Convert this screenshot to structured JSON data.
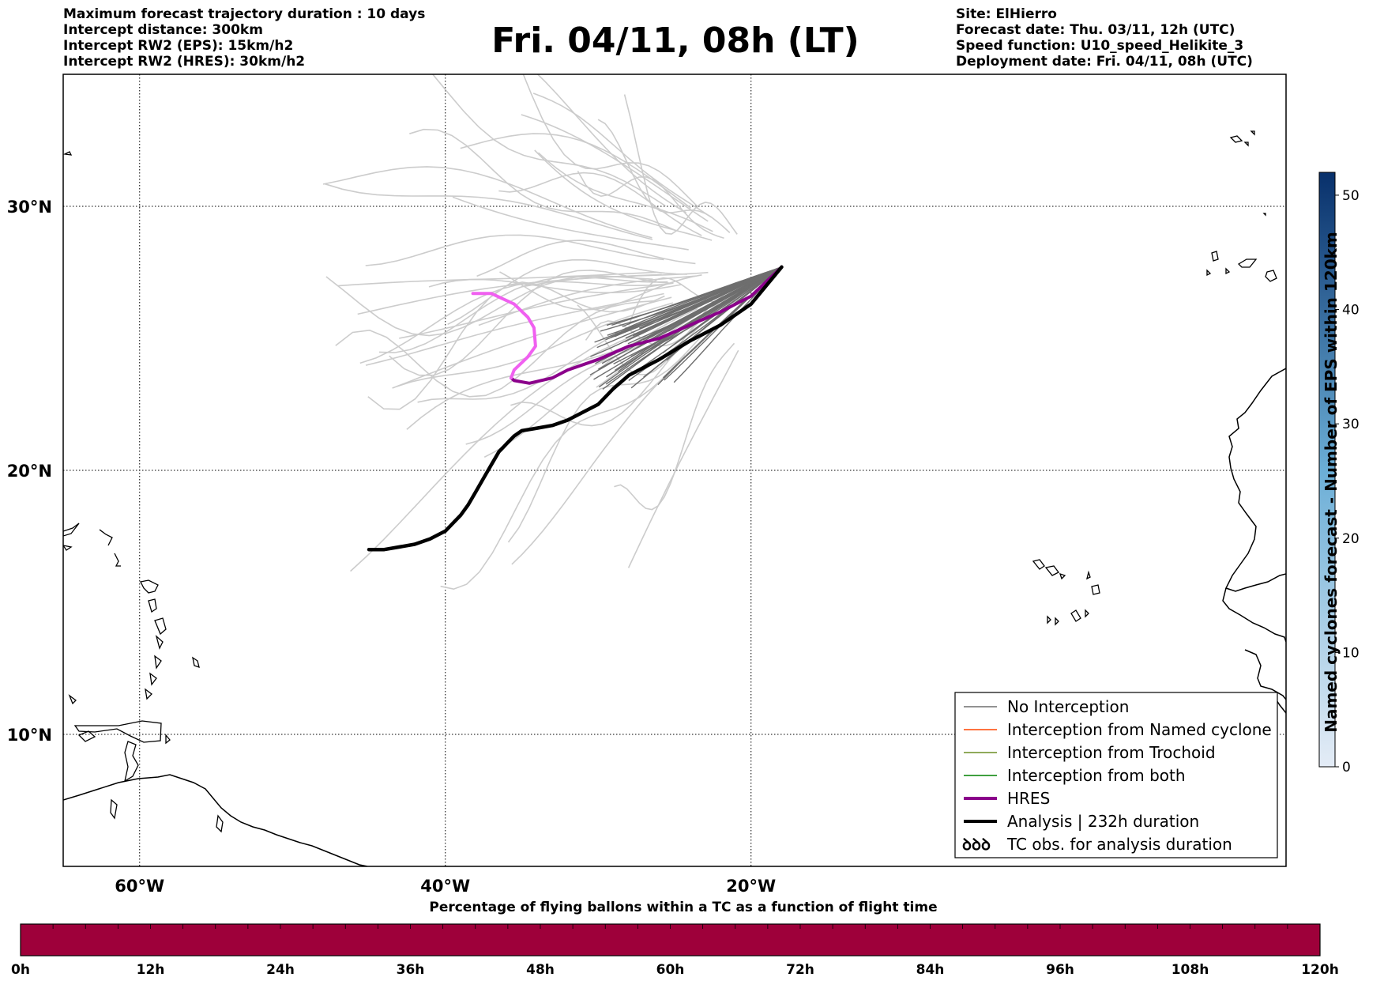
{
  "header": {
    "info_left": [
      "Maximum forecast trajectory duration : 10 days",
      "Intercept distance: 300km",
      "Intercept RW2 (EPS):  15km/h2",
      "Intercept RW2 (HRES): 30km/h2"
    ],
    "title": "Fri. 04/11, 08h (LT)",
    "info_right": [
      "Site: ElHierro",
      "Forecast date: Thu. 03/11, 12h (UTC)",
      "Speed function: U10_speed_Helikite_3",
      "Deployment date: Fri. 04/11, 08h (UTC)"
    ]
  },
  "map": {
    "lon_range": [
      -65,
      15
    ],
    "lat_range": [
      5,
      35
    ],
    "lon_ticks": [
      {
        "value": -60,
        "label": "60°W"
      },
      {
        "value": -40,
        "label": "40°W"
      },
      {
        "value": -20,
        "label": "20°W"
      }
    ],
    "lat_ticks": [
      {
        "value": 30,
        "label": "30°N"
      },
      {
        "value": 20,
        "label": "20°N"
      },
      {
        "value": 10,
        "label": "10°N"
      }
    ],
    "colors": {
      "eps_faded": "#cccccc",
      "eps_no_interception": "#6e6e6e",
      "hres": "#8b008b",
      "hres_early": "#f060f0",
      "analysis": "#000000"
    },
    "launch_site": [
      -18.0,
      27.7
    ],
    "hres_track": [
      [
        -18.0,
        27.7
      ],
      [
        -20.0,
        26.6
      ],
      [
        -22.0,
        26.0
      ],
      [
        -24.0,
        25.5
      ],
      [
        -26.0,
        25.0
      ],
      [
        -28.0,
        24.7
      ],
      [
        -30.0,
        24.2
      ],
      [
        -32.0,
        23.8
      ],
      [
        -33.0,
        23.5
      ],
      [
        -34.5,
        23.3
      ],
      [
        -35.5,
        23.4
      ],
      [
        -35.7,
        23.5
      ]
    ],
    "hres_early_track": [
      [
        -35.7,
        23.5
      ],
      [
        -35.5,
        23.8
      ],
      [
        -34.6,
        24.3
      ],
      [
        -34.1,
        24.7
      ],
      [
        -34.2,
        25.4
      ],
      [
        -34.6,
        25.8
      ],
      [
        -35.5,
        26.3
      ],
      [
        -37.0,
        26.7
      ],
      [
        -38.2,
        26.7
      ]
    ],
    "analysis_track": [
      [
        -18.0,
        27.7
      ],
      [
        -20.0,
        26.3
      ],
      [
        -22.0,
        25.5
      ],
      [
        -24.0,
        24.9
      ],
      [
        -26.0,
        24.2
      ],
      [
        -28.0,
        23.6
      ],
      [
        -29.0,
        23.1
      ],
      [
        -30.0,
        22.5
      ],
      [
        -31.0,
        22.2
      ],
      [
        -32.0,
        21.9
      ],
      [
        -33.0,
        21.7
      ],
      [
        -34.0,
        21.6
      ],
      [
        -35.0,
        21.5
      ],
      [
        -35.5,
        21.3
      ],
      [
        -36.0,
        21.0
      ],
      [
        -36.5,
        20.7
      ],
      [
        -37.0,
        20.2
      ],
      [
        -37.5,
        19.7
      ],
      [
        -38.0,
        19.2
      ],
      [
        -38.5,
        18.7
      ],
      [
        -39.0,
        18.3
      ],
      [
        -39.5,
        18.0
      ],
      [
        -40.0,
        17.7
      ],
      [
        -41.0,
        17.4
      ],
      [
        -42.0,
        17.2
      ],
      [
        -43.0,
        17.1
      ],
      [
        -44.0,
        17.0
      ],
      [
        -45.0,
        17.0
      ]
    ]
  },
  "legend": {
    "items": [
      {
        "label": "No Interception",
        "color": "#6e6e6e",
        "kind": "line-thin"
      },
      {
        "label": "Interception from Named cyclone",
        "color": "#ff4500",
        "kind": "line-thin"
      },
      {
        "label": "Interception from Trochoid",
        "color": "#6b8e23",
        "kind": "line-thin"
      },
      {
        "label": "Interception from both",
        "color": "#008000",
        "kind": "line-thin"
      },
      {
        "label": "HRES",
        "color": "#8b008b",
        "kind": "line-thick"
      },
      {
        "label": "Analysis | 232h duration",
        "color": "#000000",
        "kind": "line-thick"
      },
      {
        "label": "TC obs. for analysis duration",
        "color": "#000000",
        "kind": "tc-symbols"
      }
    ],
    "tc_symbol": "ꝺ"
  },
  "colorbar_right": {
    "label": "Named cyclones forecast - Number of EPS within 120km",
    "ticks": [
      {
        "value": 0,
        "label": "0"
      },
      {
        "value": 10,
        "label": "10"
      },
      {
        "value": 20,
        "label": "20"
      },
      {
        "value": 30,
        "label": "30"
      },
      {
        "value": 40,
        "label": "40"
      },
      {
        "value": 50,
        "label": "50"
      }
    ],
    "range": [
      0,
      52
    ],
    "color_low": "#e4ecf6",
    "color_high": "#08306b"
  },
  "time_bar": {
    "title": "Percentage of flying ballons within a TC as a function of flight time",
    "labels": [
      "0h",
      "12h",
      "24h",
      "36h",
      "48h",
      "60h",
      "72h",
      "84h",
      "96h",
      "108h",
      "120h"
    ],
    "fill_color": "#9e003a"
  }
}
